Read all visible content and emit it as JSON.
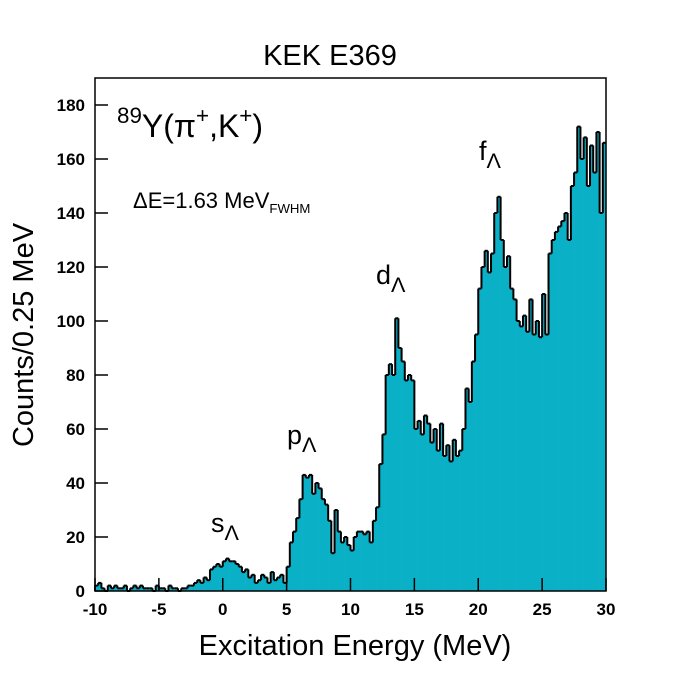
{
  "chart_data": {
    "type": "histogram",
    "title": "KEK E369",
    "x_label": "Excitation Energy  (MeV)",
    "y_label": "Counts/0.25 MeV",
    "color": "#0ab0c6",
    "edge_color": "#000000",
    "bins": [
      -10,
      -9.75,
      -9.5,
      -9.25,
      -9,
      -8.75,
      -8.5,
      -8.25,
      -8,
      -7.75,
      -7.5,
      -7.25,
      -7,
      -6.75,
      -6.5,
      -6.25,
      -6,
      -5.75,
      -5.5,
      -5.25,
      -5,
      -4.75,
      -4.5,
      -4.25,
      -4,
      -3.75,
      -3.5,
      -3.25,
      -3,
      -2.75,
      -2.5,
      -2.25,
      -2,
      -1.75,
      -1.5,
      -1.25,
      -1,
      -0.75,
      -0.5,
      -0.25,
      0,
      0.25,
      0.5,
      0.75,
      1,
      1.25,
      1.5,
      1.75,
      2,
      2.25,
      2.5,
      2.75,
      3,
      3.25,
      3.5,
      3.75,
      4,
      4.25,
      4.5,
      4.75,
      5,
      5.25,
      5.5,
      5.75,
      6,
      6.25,
      6.5,
      6.75,
      7,
      7.25,
      7.5,
      7.75,
      8,
      8.25,
      8.5,
      8.75,
      9,
      9.25,
      9.5,
      9.75,
      10,
      10.25,
      10.5,
      10.75,
      11,
      11.25,
      11.5,
      11.75,
      12,
      12.25,
      12.5,
      12.75,
      13,
      13.25,
      13.5,
      13.75,
      14,
      14.25,
      14.5,
      14.75,
      15,
      15.25,
      15.5,
      15.75,
      16,
      16.25,
      16.5,
      16.75,
      17,
      17.25,
      17.5,
      17.75,
      18,
      18.25,
      18.5,
      18.75,
      19,
      19.25,
      19.5,
      19.75,
      20,
      20.25,
      20.5,
      20.75,
      21,
      21.25,
      21.5,
      21.75,
      22,
      22.25,
      22.5,
      22.75,
      23,
      23.25,
      23.5,
      23.75,
      24,
      24.25,
      24.5,
      24.75,
      25,
      25.25,
      25.5,
      25.75,
      26,
      26.25,
      26.5,
      26.75,
      27,
      27.25,
      27.5,
      27.75,
      28,
      28.25,
      28.5,
      28.75,
      29,
      29.25,
      29.5,
      29.75,
      30
    ],
    "values": [
      2,
      3,
      1,
      0,
      2,
      1,
      2,
      1,
      1,
      2,
      0,
      1,
      2,
      1,
      2,
      1,
      1,
      1,
      0,
      2,
      1,
      1,
      0,
      2,
      1,
      1,
      0,
      1,
      1,
      2,
      2,
      3,
      4,
      3,
      5,
      4,
      8,
      9,
      10,
      9,
      11,
      12,
      11,
      11,
      10,
      9,
      7,
      8,
      5,
      6,
      3,
      4,
      6,
      5,
      3,
      7,
      4,
      5,
      6,
      3,
      9,
      18,
      22,
      27,
      34,
      43,
      42,
      43,
      36,
      40,
      38,
      34,
      32,
      26,
      14,
      30,
      22,
      18,
      20,
      17,
      15,
      20,
      22,
      22,
      21,
      22,
      18,
      26,
      31,
      47,
      58,
      80,
      84,
      80,
      101,
      90,
      85,
      78,
      80,
      78,
      60,
      63,
      58,
      65,
      62,
      55,
      60,
      52,
      62,
      50,
      54,
      48,
      56,
      50,
      52,
      60,
      75,
      70,
      85,
      95,
      112,
      120,
      126,
      118,
      125,
      140,
      146,
      130,
      120,
      124,
      112,
      108,
      100,
      98,
      102,
      96,
      108,
      95,
      100,
      94,
      110,
      95,
      125,
      130,
      133,
      135,
      137,
      140,
      130,
      150,
      155,
      172,
      160,
      168,
      150,
      165,
      155,
      170,
      140,
      166
    ],
    "xlim": [
      -10,
      30
    ],
    "ylim": [
      0,
      190
    ],
    "xticks": [
      -10,
      -5,
      0,
      5,
      10,
      15,
      20,
      25,
      30
    ],
    "yticks": [
      0,
      20,
      40,
      60,
      80,
      100,
      120,
      140,
      160,
      180
    ],
    "annotations": [
      [
        {
          "text": "89",
          "style": "sup"
        },
        {
          "text": "Y(π",
          "style": "normal"
        },
        {
          "text": "+",
          "style": "sup"
        },
        {
          "text": ",K",
          "style": "normal"
        },
        {
          "text": "+",
          "style": "sup"
        },
        {
          "text": ")",
          "style": "normal"
        }
      ],
      [
        {
          "text": "ΔE=1.63 MeV",
          "style": "normal"
        },
        {
          "text": "FWHM",
          "style": "sub"
        }
      ],
      [
        {
          "text": "s",
          "style": "normal"
        },
        {
          "text": "Λ",
          "style": "sub"
        }
      ],
      [
        {
          "text": "p",
          "style": "normal"
        },
        {
          "text": "Λ",
          "style": "sub"
        }
      ],
      [
        {
          "text": "d",
          "style": "normal"
        },
        {
          "text": "Λ",
          "style": "sub"
        }
      ],
      [
        {
          "text": "f",
          "style": "normal"
        },
        {
          "text": "Λ",
          "style": "sub"
        }
      ]
    ]
  }
}
